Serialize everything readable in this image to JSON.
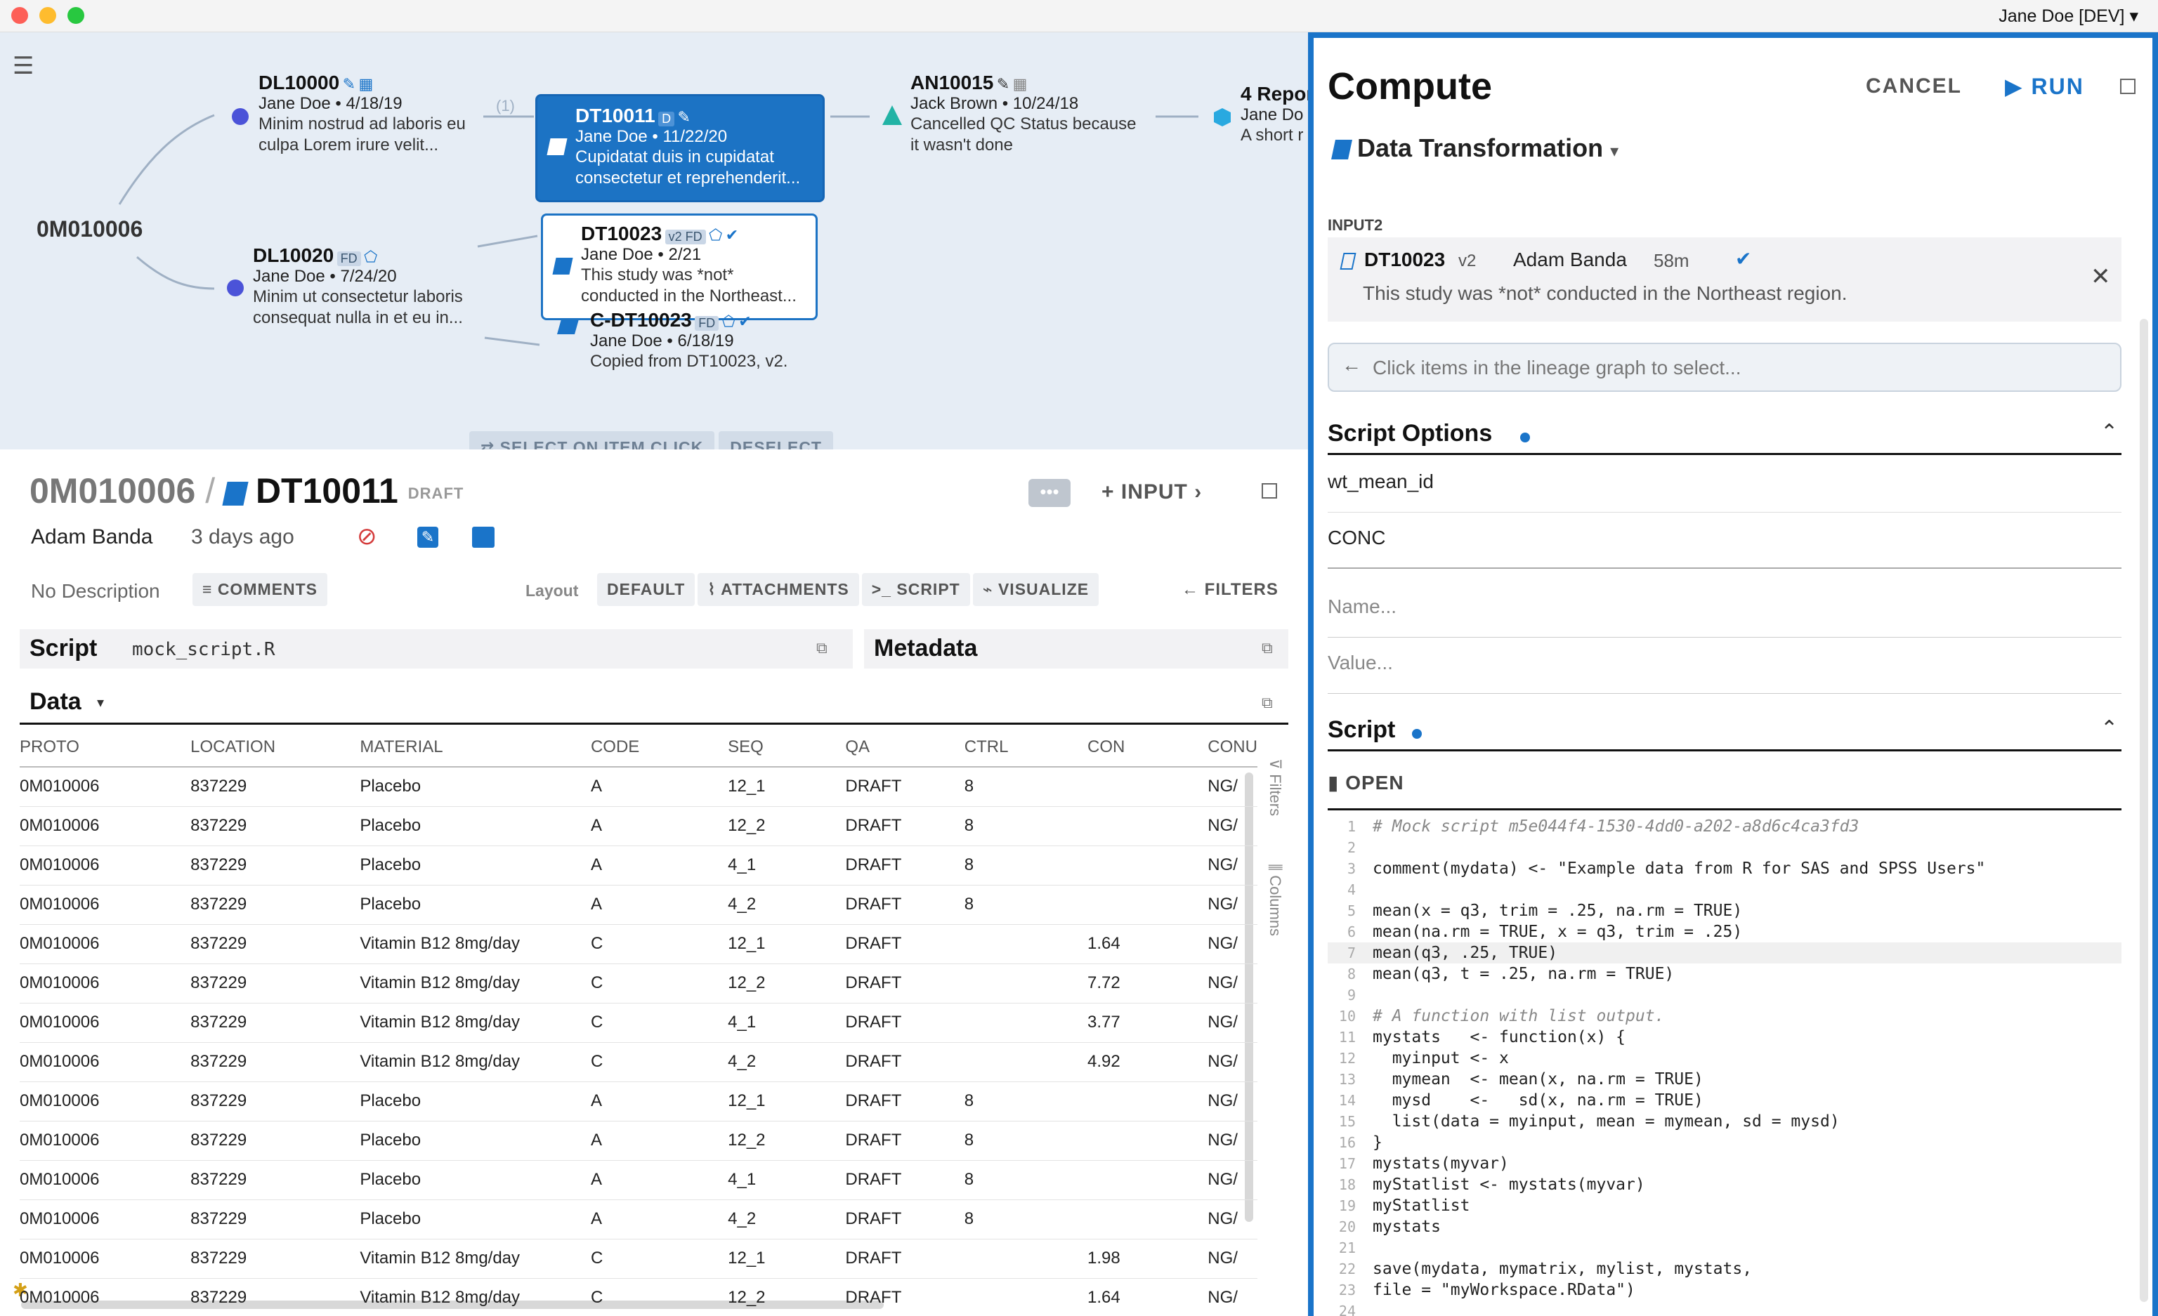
{
  "window": {
    "user_menu": "Jane Doe [DEV]"
  },
  "lineage": {
    "root": "0M010006",
    "nodes": [
      {
        "id": "DL10000",
        "sub": "Jane Doe • 4/18/19",
        "desc1": "Minim nostrud ad laboris eu",
        "desc2": "culpa Lorem irure velit..."
      },
      {
        "id": "DL10020",
        "badge": "FD",
        "sub": "Jane Doe • 7/24/20",
        "desc1": "Minim ut consectetur laboris",
        "desc2": "consequat nulla in et eu in..."
      },
      {
        "id": "DT10011",
        "badge": "D",
        "sub": "Jane Doe • 11/22/20",
        "desc1": "Cupidatat duis in cupidatat",
        "desc2": "consectetur et reprehenderit..."
      },
      {
        "id": "DT10023",
        "badge": "v2 FD",
        "sub": "Jane Doe • 2/21",
        "desc1": "This study was *not*",
        "desc2": "conducted in the Northeast..."
      },
      {
        "id": "C-DT10023",
        "badge": "FD",
        "sub": "Jane Doe • 6/18/19",
        "desc1": "Copied from DT10023, v2."
      },
      {
        "id": "AN10015",
        "sub": "Jack Brown • 10/24/18",
        "desc1": "Cancelled QC Status because",
        "desc2": "it wasn't done"
      },
      {
        "id": "4 Repor",
        "sub": "Jane Do",
        "desc1": "A short r"
      }
    ],
    "edge_label": "(1)",
    "select_on_click": "SELECT ON ITEM CLICK",
    "deselect": "DESELECT"
  },
  "item": {
    "breadcrumb_parent": "0M010006",
    "separator": "/",
    "title": "DT10011",
    "status": "DRAFT",
    "owner": "Adam Banda",
    "age": "3 days ago",
    "description": "No Description",
    "comments": "COMMENTS",
    "input": "INPUT",
    "layout_label": "Layout",
    "layout_buttons": [
      "DEFAULT",
      "ATTACHMENTS",
      "SCRIPT",
      "VISUALIZE"
    ],
    "filters": "FILTERS",
    "script_label": "Script",
    "script_file": "mock_script.R",
    "metadata_label": "Metadata",
    "data_label": "Data"
  },
  "table": {
    "columns": [
      "PROTO",
      "LOCATION",
      "MATERIAL",
      "CODE",
      "SEQ",
      "QA",
      "CTRL",
      "CON",
      "CONU"
    ],
    "rows": [
      [
        "0M010006",
        "837229",
        "Placebo",
        "A",
        "12_1",
        "DRAFT",
        "8",
        "",
        "NG/"
      ],
      [
        "0M010006",
        "837229",
        "Placebo",
        "A",
        "12_2",
        "DRAFT",
        "8",
        "",
        "NG/"
      ],
      [
        "0M010006",
        "837229",
        "Placebo",
        "A",
        "4_1",
        "DRAFT",
        "8",
        "",
        "NG/"
      ],
      [
        "0M010006",
        "837229",
        "Placebo",
        "A",
        "4_2",
        "DRAFT",
        "8",
        "",
        "NG/"
      ],
      [
        "0M010006",
        "837229",
        "Vitamin B12 8mg/day",
        "C",
        "12_1",
        "DRAFT",
        "",
        "1.64",
        "NG/"
      ],
      [
        "0M010006",
        "837229",
        "Vitamin B12 8mg/day",
        "C",
        "12_2",
        "DRAFT",
        "",
        "7.72",
        "NG/"
      ],
      [
        "0M010006",
        "837229",
        "Vitamin B12 8mg/day",
        "C",
        "4_1",
        "DRAFT",
        "",
        "3.77",
        "NG/"
      ],
      [
        "0M010006",
        "837229",
        "Vitamin B12 8mg/day",
        "C",
        "4_2",
        "DRAFT",
        "",
        "4.92",
        "NG/"
      ],
      [
        "0M010006",
        "837229",
        "Placebo",
        "A",
        "12_1",
        "DRAFT",
        "8",
        "",
        "NG/"
      ],
      [
        "0M010006",
        "837229",
        "Placebo",
        "A",
        "12_2",
        "DRAFT",
        "8",
        "",
        "NG/"
      ],
      [
        "0M010006",
        "837229",
        "Placebo",
        "A",
        "4_1",
        "DRAFT",
        "8",
        "",
        "NG/"
      ],
      [
        "0M010006",
        "837229",
        "Placebo",
        "A",
        "4_2",
        "DRAFT",
        "8",
        "",
        "NG/"
      ],
      [
        "0M010006",
        "837229",
        "Vitamin B12 8mg/day",
        "C",
        "12_1",
        "DRAFT",
        "",
        "1.98",
        "NG/"
      ],
      [
        "0M010006",
        "837229",
        "Vitamin B12 8mg/day",
        "C",
        "12_2",
        "DRAFT",
        "",
        "1.64",
        "NG/"
      ]
    ],
    "side_filters": "Filters",
    "side_columns": "Columns"
  },
  "compute": {
    "title": "Compute",
    "cancel": "CANCEL",
    "run": "RUN",
    "transform": "Data Transformation",
    "input_label": "INPUT2",
    "input_id": "DT10023",
    "input_version": "v2",
    "input_owner": "Adam Banda",
    "input_age": "58m",
    "input_desc": "This study was *not* conducted in the Northeast region.",
    "select_hint": "Click items in the lineage graph to select...",
    "script_options": "Script Options",
    "option1": "wt_mean_id",
    "option2": "CONC",
    "name_placeholder": "Name...",
    "value_placeholder": "Value...",
    "script": "Script",
    "open": "OPEN",
    "code_lines": [
      "# Mock script m5e044f4-1530-4dd0-a202-a8d6c4ca3fd3",
      "",
      "comment(mydata) <- \"Example data from R for SAS and SPSS Users\"",
      "",
      "mean(x = q3, trim = .25, na.rm = TRUE)",
      "mean(na.rm = TRUE, x = q3, trim = .25)",
      "mean(q3, .25, TRUE)",
      "mean(q3, t = .25, na.rm = TRUE)",
      "",
      "# A function with list output.",
      "mystats   <- function(x) {",
      "  myinput <- x",
      "  mymean  <- mean(x, na.rm = TRUE)",
      "  mysd    <-   sd(x, na.rm = TRUE)",
      "  list(data = myinput, mean = mymean, sd = mysd)",
      "}",
      "mystats(myvar)",
      "myStatlist <- mystats(myvar)",
      "myStatlist",
      "mystats",
      "",
      "save(mydata, mymatrix, mylist, mystats,",
      "file = \"myWorkspace.RData\")",
      ""
    ]
  },
  "colors": {
    "accent": "#1a74c9",
    "lineage_bg": "#e6edf5",
    "node_dot": "#4b53d8",
    "analysis_triangle": "#22b3a5",
    "report_hex": "#29a9e0"
  }
}
